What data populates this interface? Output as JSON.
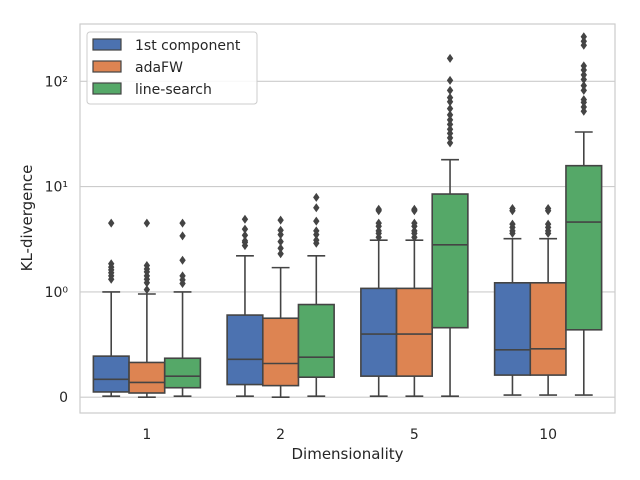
{
  "chart_data": {
    "type": "box",
    "xlabel": "Dimensionality",
    "ylabel": "KL-divergence",
    "yscale": "symlog",
    "y_tick_labels": [
      "0",
      "10⁰",
      "10¹",
      "10²"
    ],
    "y_tick_values": [
      0,
      1,
      10,
      100
    ],
    "ylim": [
      -0.15,
      350
    ],
    "grid": "horizontal",
    "legend_position": "upper-left",
    "categories": [
      "1",
      "2",
      "5",
      "10"
    ],
    "series": [
      {
        "name": "1st component",
        "color": "#4c72b0",
        "boxes": [
          {
            "min": 0.01,
            "q1": 0.05,
            "median": 0.17,
            "q3": 0.39,
            "max": 1.0,
            "outliers": [
              1.32,
              1.42,
              1.52,
              1.62,
              1.72,
              1.85,
              4.5
            ]
          },
          {
            "min": 0.01,
            "q1": 0.12,
            "median": 0.36,
            "q3": 0.78,
            "max": 2.2,
            "outliers": [
              2.75,
              2.95,
              3.05,
              3.45,
              3.95,
              4.9
            ]
          },
          {
            "min": 0.01,
            "q1": 0.2,
            "median": 0.6,
            "q3": 1.08,
            "max": 3.1,
            "outliers": [
              3.3,
              3.6,
              3.8,
              4.2,
              4.5,
              5.9,
              6.1
            ]
          },
          {
            "min": 0.02,
            "q1": 0.21,
            "median": 0.45,
            "q3": 1.22,
            "max": 3.2,
            "outliers": [
              3.6,
              3.8,
              4.1,
              4.4,
              5.9,
              6.2
            ]
          }
        ]
      },
      {
        "name": "adaFW",
        "color": "#dd8452",
        "boxes": [
          {
            "min": 0.0,
            "q1": 0.04,
            "median": 0.14,
            "q3": 0.33,
            "max": 0.98,
            "outliers": [
              1.05,
              1.22,
              1.32,
              1.42,
              1.55,
              1.65,
              1.78,
              4.5
            ]
          },
          {
            "min": 0.0,
            "q1": 0.11,
            "median": 0.32,
            "q3": 0.75,
            "max": 1.7,
            "outliers": [
              2.3,
              2.6,
              3.0,
              3.5,
              3.85,
              4.8
            ]
          },
          {
            "min": 0.01,
            "q1": 0.2,
            "median": 0.6,
            "q3": 1.08,
            "max": 3.1,
            "outliers": [
              3.3,
              3.6,
              3.8,
              4.2,
              4.5,
              5.9,
              6.1
            ]
          },
          {
            "min": 0.02,
            "q1": 0.21,
            "median": 0.46,
            "q3": 1.22,
            "max": 3.2,
            "outliers": [
              3.6,
              3.8,
              4.1,
              4.4,
              5.9,
              6.2
            ]
          }
        ]
      },
      {
        "name": "line-search",
        "color": "#55a868",
        "boxes": [
          {
            "min": 0.01,
            "q1": 0.09,
            "median": 0.2,
            "q3": 0.37,
            "max": 1.0,
            "outliers": [
              1.2,
              1.3,
              1.42,
              2.0,
              3.4,
              4.5
            ]
          },
          {
            "min": 0.01,
            "q1": 0.19,
            "median": 0.38,
            "q3": 0.88,
            "max": 2.2,
            "outliers": [
              2.9,
              3.1,
              3.5,
              3.8,
              4.7,
              6.3,
              7.9
            ]
          },
          {
            "min": 0.01,
            "q1": 0.66,
            "median": 2.8,
            "q3": 8.5,
            "max": 18,
            "outliers": [
              26,
              29,
              32,
              35,
              39,
              43,
              48,
              55,
              64,
              70,
              82,
              102,
              165
            ]
          },
          {
            "min": 0.02,
            "q1": 0.64,
            "median": 4.6,
            "q3": 15.8,
            "max": 33,
            "outliers": [
              52,
              57,
              63,
              67,
              82,
              91,
              104,
              115,
              128,
              140,
              220,
              240,
              265
            ]
          }
        ]
      }
    ]
  }
}
